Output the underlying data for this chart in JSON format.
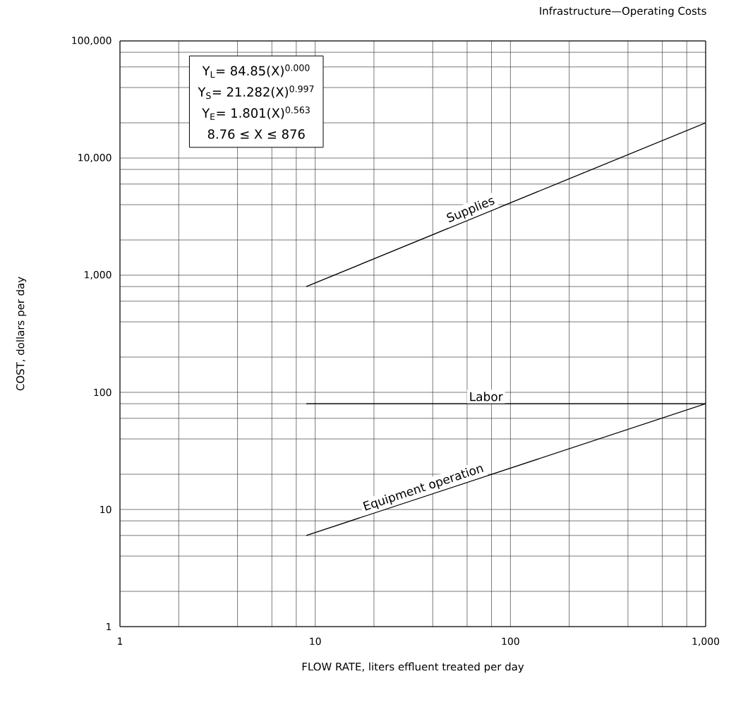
{
  "chart_data": {
    "type": "line",
    "title": "Infrastructure—Operating Costs",
    "xlabel": "FLOW RATE, liters effluent treated per day",
    "ylabel": "COST, dollars per day",
    "log": "xy",
    "grid": true,
    "xlim": [
      1,
      1000
    ],
    "ylim": [
      1,
      100000
    ],
    "xticks": [
      1,
      10,
      100,
      {
        "value": 1000,
        "label": "1,000"
      }
    ],
    "yticks": [
      1,
      10,
      100,
      {
        "value": 1000,
        "label": "1,000"
      },
      {
        "value": 10000,
        "label": "10,000"
      },
      {
        "value": 100000,
        "label": "100,000"
      }
    ],
    "x": [
      9,
      1000
    ],
    "series": [
      {
        "name": "Supplies",
        "color": "#000000",
        "values": [
          800,
          20000
        ]
      },
      {
        "name": "Labor",
        "color": "#000000",
        "values": [
          80,
          80
        ]
      },
      {
        "name": "Equipment operation",
        "color": "#000000",
        "values": [
          6,
          80
        ]
      }
    ],
    "annotations": [
      "Y$_{L}$= 84.85(X)$^{0.000}$",
      "Y$_{S}$= 21.282(X)$^{0.997}$",
      "Y$_{E}$= 1.801(X)$^{0.563}$",
      "8.76 ≤ X ≤  876"
    ]
  }
}
